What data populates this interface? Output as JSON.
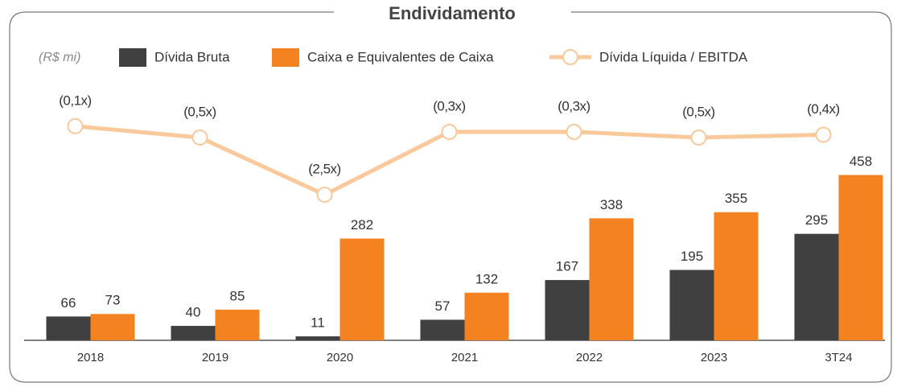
{
  "chart_data": {
    "type": "bar+line",
    "title": "Endividamento",
    "unit_label": "(R$ mi)",
    "categories": [
      "2018",
      "2019",
      "2020",
      "2021",
      "2022",
      "2023",
      "3T24"
    ],
    "ylim": [
      0,
      720
    ],
    "y2lim": [
      -7.6,
      1.5
    ],
    "series": [
      {
        "name": "Dívida Bruta",
        "type": "bar",
        "color": "#404040",
        "values": [
          66,
          40,
          11,
          57,
          167,
          195,
          295
        ]
      },
      {
        "name": "Caixa e Equivalentes de Caixa",
        "type": "bar",
        "color": "#f58220",
        "values": [
          73,
          85,
          282,
          132,
          338,
          355,
          458
        ]
      },
      {
        "name": "Dívida Líquida / EBITDA",
        "type": "line",
        "axis": "y2",
        "color": "#f9c89b",
        "values": [
          -0.1,
          -0.5,
          -2.5,
          -0.3,
          -0.3,
          -0.5,
          -0.4
        ],
        "value_labels": [
          "(0,1x)",
          "(0,5x)",
          "(2,5x)",
          "(0,3x)",
          "(0,3x)",
          "(0,5x)",
          "(0,4x)"
        ]
      }
    ]
  }
}
